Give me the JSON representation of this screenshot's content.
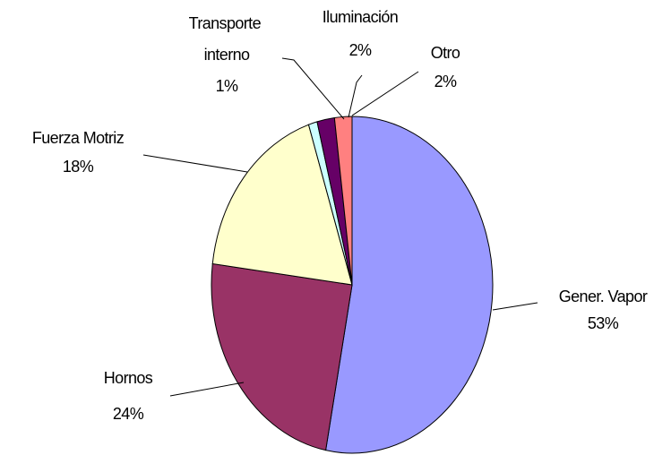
{
  "chart_data": {
    "type": "pie",
    "categories": [
      "Gener. Vapor",
      "Hornos",
      "Fuerza Motriz",
      "Transporte interno",
      "Iluminación",
      "Otro"
    ],
    "values": [
      53,
      24,
      18,
      1,
      2,
      2
    ],
    "value_labels": [
      "53%",
      "24%",
      "18%",
      "1%",
      "2%",
      "2%"
    ],
    "colors": [
      "#9999ff",
      "#993366",
      "#ffffcc",
      "#ccffff",
      "#660066",
      "#ff8080"
    ]
  }
}
